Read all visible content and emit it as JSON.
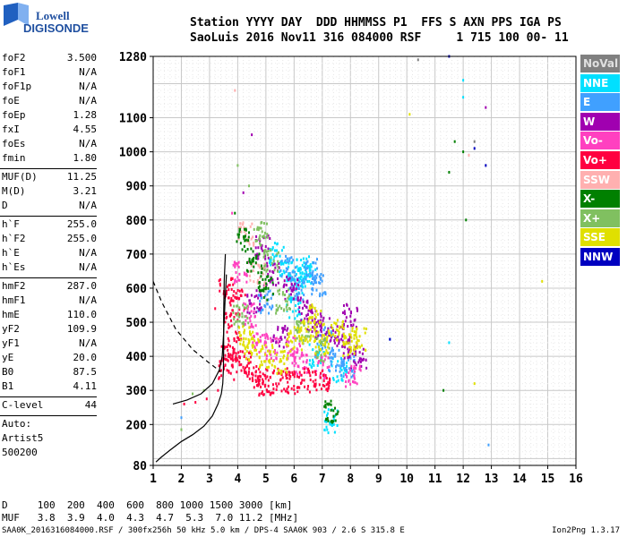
{
  "logo": {
    "line1": "Lowell",
    "line2": "DIGISONDE"
  },
  "header": {
    "line1": "Station YYYY DAY  DDD HHMMSS P1  FFS S AXN PPS IGA PS",
    "line2": "SaoLuis 2016 Nov11 316 084000 RSF     1 715 100 00- 11"
  },
  "params": [
    {
      "name": "foF2",
      "value": "3.500"
    },
    {
      "name": "foF1",
      "value": "N/A"
    },
    {
      "name": "foF1p",
      "value": "N/A"
    },
    {
      "name": "foE",
      "value": "N/A"
    },
    {
      "name": "foEp",
      "value": "1.28"
    },
    {
      "name": "fxI",
      "value": "4.55"
    },
    {
      "name": "foEs",
      "value": "N/A"
    },
    {
      "name": "fmin",
      "value": "1.80"
    },
    {
      "sep": true
    },
    {
      "name": "MUF(D)",
      "value": "11.25"
    },
    {
      "name": "M(D)",
      "value": "3.21"
    },
    {
      "name": "D",
      "value": "N/A"
    },
    {
      "sep": true
    },
    {
      "name": "h`F",
      "value": "255.0"
    },
    {
      "name": "h`F2",
      "value": "255.0"
    },
    {
      "name": "h`E",
      "value": "N/A"
    },
    {
      "name": "h`Es",
      "value": "N/A"
    },
    {
      "sep": true
    },
    {
      "name": "hmF2",
      "value": "287.0"
    },
    {
      "name": "hmF1",
      "value": "N/A"
    },
    {
      "name": "hmE",
      "value": "110.0"
    },
    {
      "name": "yF2",
      "value": "109.9"
    },
    {
      "name": "yF1",
      "value": "N/A"
    },
    {
      "name": "yE",
      "value": "20.0"
    },
    {
      "name": "B0",
      "value": "87.5"
    },
    {
      "name": "B1",
      "value": "4.11"
    },
    {
      "sep": true
    },
    {
      "name": "C-level",
      "value": "44"
    },
    {
      "sep": true
    },
    {
      "text": "Auto:"
    },
    {
      "text": "Artist5"
    },
    {
      "text": "500200"
    }
  ],
  "legend": [
    {
      "label": "NoVal",
      "bg": "#808080",
      "fg": "#e0e0e0"
    },
    {
      "label": "NNE",
      "bg": "#00e0ff",
      "fg": "#ffffff"
    },
    {
      "label": "E",
      "bg": "#40a0ff",
      "fg": "#ffffff"
    },
    {
      "label": "W",
      "bg": "#a000b0",
      "fg": "#ffffff"
    },
    {
      "label": "Vo-",
      "bg": "#ff40c0",
      "fg": "#ffffff"
    },
    {
      "label": "Vo+",
      "bg": "#ff0040",
      "fg": "#ffffff"
    },
    {
      "label": "SSW",
      "bg": "#ffb0b0",
      "fg": "#ffffff"
    },
    {
      "label": "X-",
      "bg": "#008000",
      "fg": "#ffffff"
    },
    {
      "label": "X+",
      "bg": "#80c060",
      "fg": "#ffffff"
    },
    {
      "label": "SSE",
      "bg": "#e0e000",
      "fg": "#ffffff"
    },
    {
      "label": "NNW",
      "bg": "#0000c0",
      "fg": "#ffffff"
    }
  ],
  "dmuf": {
    "line1": "D     100  200  400  600  800 1000 1500 3000 [km]",
    "line2": "MUF   3.8  3.9  4.0  4.3  4.7  5.3  7.0 11.2 [MHz]"
  },
  "footer": "SAA0K_2016316084000.RSF / 300fx256h 50 kHz 5.0 km / DPS-4 SAA0K 903 / 2.6 S 315.8 E",
  "version": "Ion2Png 1.3.17",
  "chart_data": {
    "type": "scatter",
    "title": "",
    "xlabel": "",
    "ylabel": "",
    "xlim": [
      1,
      16
    ],
    "ylim": [
      80,
      1280
    ],
    "x_ticks": [
      "1",
      "2",
      "3",
      "4",
      "5",
      "6",
      "7",
      "8",
      "9",
      "10",
      "11",
      "12",
      "13",
      "14",
      "15",
      "16"
    ],
    "y_ticks": [
      "80",
      "200",
      "300",
      "400",
      "500",
      "600",
      "700",
      "800",
      "900",
      "1000",
      "1100",
      "1280"
    ],
    "grid": true,
    "legend_placement": "right",
    "series": [
      {
        "name": "NNE",
        "color": "#00e0ff",
        "points": [
          [
            5.7,
            650
          ],
          [
            6.2,
            620
          ],
          [
            6.5,
            640
          ],
          [
            7.3,
            210
          ],
          [
            12.0,
            1160
          ],
          [
            12.0,
            1210
          ],
          [
            11.5,
            440
          ],
          [
            6.0,
            540
          ],
          [
            6.8,
            400
          ],
          [
            7.6,
            360
          ],
          [
            5.4,
            700
          ],
          [
            6.3,
            660
          ]
        ]
      },
      {
        "name": "E",
        "color": "#40a0ff",
        "points": [
          [
            5.8,
            660
          ],
          [
            6.6,
            650
          ],
          [
            7.1,
            450
          ],
          [
            7.9,
            370
          ],
          [
            9.4,
            450
          ],
          [
            12.9,
            140
          ],
          [
            2.0,
            220
          ],
          [
            6.1,
            600
          ],
          [
            6.9,
            610
          ],
          [
            7.5,
            390
          ],
          [
            5.0,
            560
          ]
        ]
      },
      {
        "name": "W",
        "color": "#a000b0",
        "points": [
          [
            5.2,
            640
          ],
          [
            5.9,
            600
          ],
          [
            6.4,
            540
          ],
          [
            7.0,
            480
          ],
          [
            7.5,
            460
          ],
          [
            8.0,
            520
          ],
          [
            4.6,
            560
          ],
          [
            4.9,
            720
          ],
          [
            4.2,
            880
          ],
          [
            4.5,
            1050
          ],
          [
            12.8,
            1130
          ],
          [
            6.7,
            500
          ],
          [
            7.8,
            430
          ],
          [
            5.5,
            460
          ],
          [
            8.3,
            400
          ]
        ]
      },
      {
        "name": "Vo-",
        "color": "#ff40c0",
        "points": [
          [
            4.1,
            650
          ],
          [
            4.4,
            520
          ],
          [
            5.2,
            420
          ],
          [
            6.2,
            380
          ],
          [
            7.0,
            370
          ],
          [
            8.1,
            340
          ],
          [
            3.8,
            820
          ],
          [
            4.8,
            440
          ],
          [
            6.0,
            420
          ]
        ]
      },
      {
        "name": "Vo+",
        "color": "#ff0040",
        "points": [
          [
            2.1,
            260
          ],
          [
            2.5,
            265
          ],
          [
            2.9,
            275
          ],
          [
            3.3,
            300
          ],
          [
            3.6,
            360
          ],
          [
            3.7,
            420
          ],
          [
            3.8,
            500
          ],
          [
            4.0,
            560
          ],
          [
            3.9,
            420
          ],
          [
            4.5,
            340
          ],
          [
            5.0,
            320
          ],
          [
            5.5,
            330
          ],
          [
            6.0,
            320
          ],
          [
            6.5,
            330
          ],
          [
            7.0,
            330
          ],
          [
            3.2,
            540
          ],
          [
            3.6,
            600
          ],
          [
            4.2,
            380
          ],
          [
            4.8,
            330
          ]
        ]
      },
      {
        "name": "SSW",
        "color": "#ffb0b0",
        "points": [
          [
            3.9,
            1180
          ],
          [
            4.3,
            760
          ],
          [
            4.7,
            640
          ],
          [
            12.2,
            990
          ]
        ]
      },
      {
        "name": "X-",
        "color": "#008000",
        "points": [
          [
            3.9,
            820
          ],
          [
            4.2,
            740
          ],
          [
            4.6,
            680
          ],
          [
            5.0,
            600
          ],
          [
            11.5,
            940
          ],
          [
            12.0,
            1000
          ],
          [
            11.3,
            300
          ],
          [
            12.1,
            800
          ],
          [
            7.3,
            240
          ],
          [
            11.7,
            1030
          ]
        ]
      },
      {
        "name": "X+",
        "color": "#80c060",
        "points": [
          [
            2.4,
            290
          ],
          [
            2.8,
            300
          ],
          [
            4.0,
            960
          ],
          [
            4.4,
            900
          ],
          [
            4.8,
            760
          ],
          [
            5.2,
            680
          ],
          [
            5.6,
            560
          ],
          [
            6.3,
            470
          ],
          [
            7.0,
            420
          ],
          [
            2.0,
            185
          ],
          [
            4.1,
            520
          ]
        ]
      },
      {
        "name": "SSE",
        "color": "#e0e000",
        "points": [
          [
            4.5,
            420
          ],
          [
            5.0,
            400
          ],
          [
            5.5,
            380
          ],
          [
            6.0,
            450
          ],
          [
            6.5,
            470
          ],
          [
            7.0,
            440
          ],
          [
            7.5,
            480
          ],
          [
            8.0,
            430
          ],
          [
            8.3,
            450
          ],
          [
            10.1,
            1110
          ],
          [
            12.4,
            320
          ],
          [
            14.8,
            620
          ],
          [
            4.3,
            460
          ],
          [
            6.8,
            520
          ]
        ]
      },
      {
        "name": "NNW",
        "color": "#0000c0",
        "points": [
          [
            12.4,
            1010
          ],
          [
            12.8,
            960
          ],
          [
            9.4,
            450
          ],
          [
            11.5,
            1280
          ]
        ]
      },
      {
        "name": "NoVal",
        "color": "#808080",
        "points": [
          [
            12.4,
            1030
          ],
          [
            10.4,
            1270
          ]
        ]
      }
    ],
    "profile_curve": [
      [
        1.1,
        90
      ],
      [
        1.3,
        105
      ],
      [
        1.6,
        125
      ],
      [
        2.0,
        150
      ],
      [
        2.4,
        170
      ],
      [
        2.8,
        195
      ],
      [
        3.1,
        225
      ],
      [
        3.3,
        260
      ],
      [
        3.42,
        290
      ],
      [
        3.47,
        320
      ],
      [
        3.49,
        360
      ],
      [
        3.5,
        420
      ],
      [
        3.5,
        520
      ],
      [
        3.52,
        620
      ],
      [
        3.56,
        700
      ]
    ],
    "fit_curve": [
      [
        1.7,
        260
      ],
      [
        2.2,
        272
      ],
      [
        2.7,
        290
      ],
      [
        3.1,
        320
      ],
      [
        3.35,
        360
      ],
      [
        3.45,
        400
      ],
      [
        3.5,
        470
      ],
      [
        3.55,
        560
      ],
      [
        3.6,
        640
      ]
    ],
    "dashed_curve": [
      [
        1.0,
        620
      ],
      [
        1.3,
        560
      ],
      [
        1.8,
        480
      ],
      [
        2.4,
        420
      ],
      [
        3.0,
        380
      ],
      [
        3.4,
        355
      ]
    ]
  }
}
